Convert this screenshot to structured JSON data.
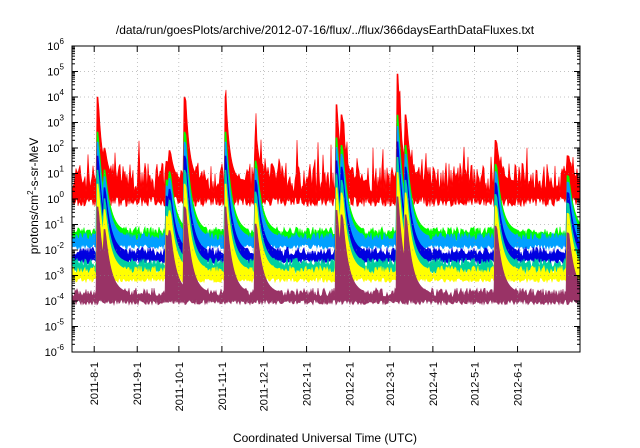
{
  "chart_data": {
    "type": "area",
    "title": "/data/run/goesPlots/archive/2012-07-16/flux/../flux/366daysEarthDataFluxes.txt",
    "xlabel": "Coordinated Universal Time (UTC)",
    "ylabel": {
      "prefix": "protons/cm",
      "sup": "2",
      "suffix": "-s-sr-MeV"
    },
    "y_scale": "log",
    "ylim": [
      1e-06,
      1000000.0
    ],
    "y_ticks": [
      {
        "base": "10",
        "exp": "-6"
      },
      {
        "base": "10",
        "exp": "-5"
      },
      {
        "base": "10",
        "exp": "-4"
      },
      {
        "base": "10",
        "exp": "-3"
      },
      {
        "base": "10",
        "exp": "-2"
      },
      {
        "base": "10",
        "exp": "-1"
      },
      {
        "base": "10",
        "exp": "0"
      },
      {
        "base": "10",
        "exp": "1"
      },
      {
        "base": "10",
        "exp": "2"
      },
      {
        "base": "10",
        "exp": "3"
      },
      {
        "base": "10",
        "exp": "4"
      },
      {
        "base": "10",
        "exp": "5"
      },
      {
        "base": "10",
        "exp": "6"
      }
    ],
    "xlim": [
      "2011-07-16",
      "2012-07-16"
    ],
    "x_ticks": [
      "2011-8-1",
      "2011-9-1",
      "2011-10-1",
      "2011-11-1",
      "2011-12-1",
      "2012-1-1",
      "2012-2-1",
      "2012-3-1",
      "2012-4-1",
      "2012-5-1",
      "2012-6-1"
    ],
    "grid": true,
    "series": [
      {
        "color": "#ff0000",
        "baseline": 5,
        "min": 0.5,
        "values_note": ""
      },
      {
        "color": "#00ff00",
        "baseline": 0.05
      },
      {
        "color": "#00a0ff",
        "baseline": 0.03
      },
      {
        "color": "#0000e0",
        "baseline": 0.008
      },
      {
        "color": "#00d0a0",
        "baseline": 0.003
      },
      {
        "color": "#ffff00",
        "baseline": 0.0015
      },
      {
        "color": "#993366",
        "baseline": 0.0002
      }
    ],
    "events": [
      {
        "date": "2011-08-04",
        "peak": 10000.0
      },
      {
        "date": "2011-08-09",
        "peak": 100
      },
      {
        "date": "2011-09-23",
        "peak": 30
      },
      {
        "date": "2011-09-25",
        "peak": 80
      },
      {
        "date": "2011-10-06",
        "peak": 10000.0
      },
      {
        "date": "2011-11-04",
        "peak": 10000.0
      },
      {
        "date": "2011-11-26",
        "peak": 300
      },
      {
        "date": "2012-01-23",
        "peak": 5000.0
      },
      {
        "date": "2012-01-27",
        "peak": 2000.0
      },
      {
        "date": "2012-03-07",
        "peak": 80000.0
      },
      {
        "date": "2012-03-13",
        "peak": 2000.0
      },
      {
        "date": "2012-05-17",
        "peak": 200
      },
      {
        "date": "2012-07-08",
        "peak": 50
      }
    ]
  }
}
